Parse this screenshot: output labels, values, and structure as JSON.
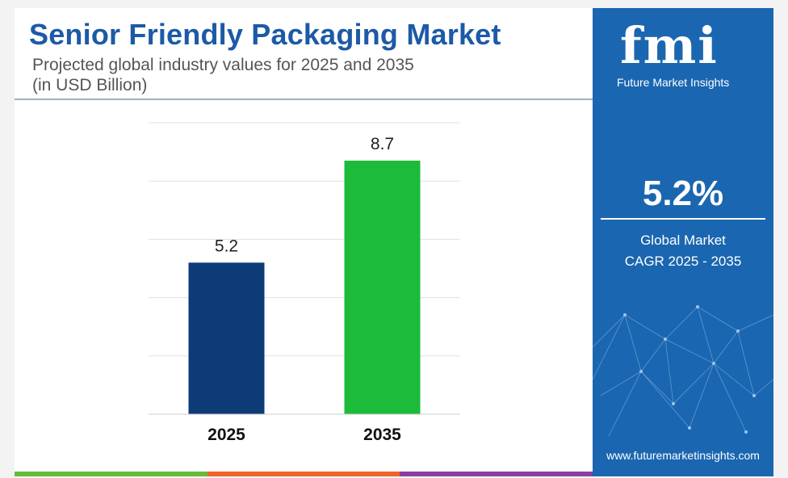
{
  "header": {
    "title": "Senior Friendly Packaging Market",
    "subtitle_line1": "Projected global industry values for 2025 and 2035",
    "subtitle_line2": "(in USD Billion)"
  },
  "sidebar": {
    "logo_text": "fmi",
    "logo_caption": "Future Market Insights",
    "cagr_value": "5.2%",
    "cagr_label_line1": "Global Market",
    "cagr_label_line2": "CAGR 2025 - 2035",
    "url": "www.futuremarketinsights.com"
  },
  "colors": {
    "title": "#1c5aa6",
    "sidebar": "#1b66b0",
    "bar_2025": "#0d3b76",
    "bar_2035": "#1dbb3a",
    "bottom_bar": [
      "#66bb3a",
      "#f0642a",
      "#8a3fa0"
    ]
  },
  "chart_data": {
    "type": "bar",
    "categories": [
      "2025",
      "2035"
    ],
    "values": [
      5.2,
      8.7
    ],
    "data_labels": [
      "5.2",
      "8.7"
    ],
    "colors": [
      "#0d3b76",
      "#1dbb3a"
    ],
    "ylim": [
      0,
      10
    ],
    "grid": true,
    "legend": "none"
  }
}
